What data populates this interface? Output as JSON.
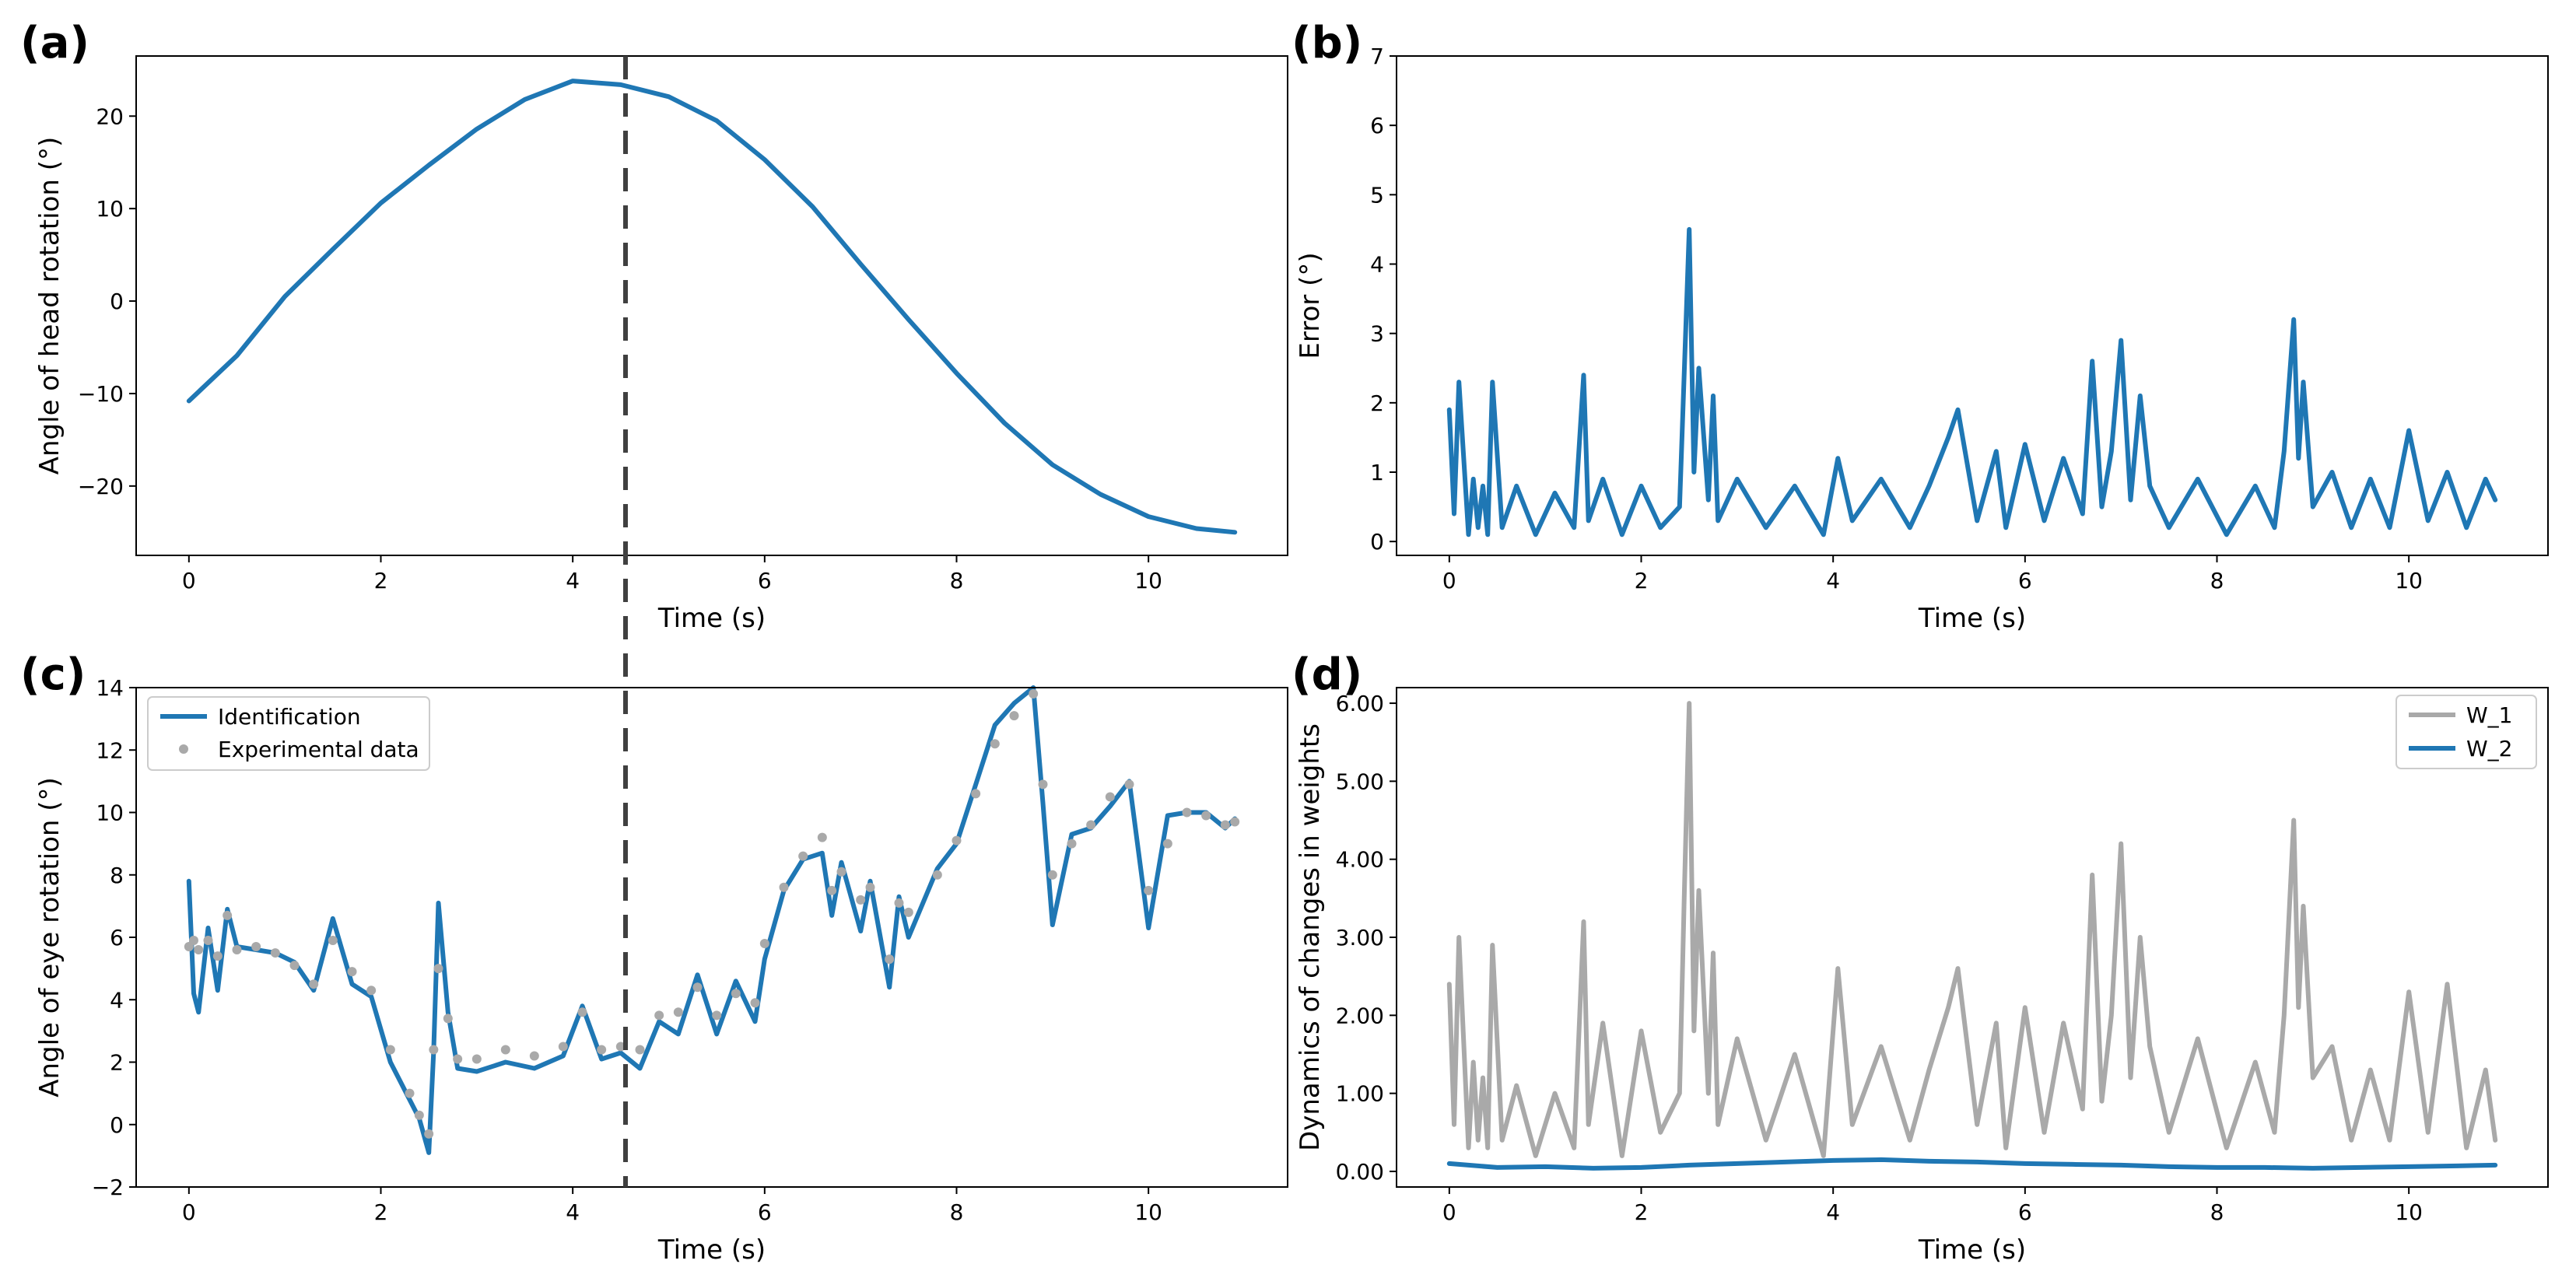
{
  "figure": {
    "divider_color": "#404040",
    "divider_time_s": 4.55
  },
  "chart_data": [
    {
      "panel": "(a)",
      "type": "line",
      "xlabel": "Time (s)",
      "ylabel": "Angle of head rotation (°)",
      "xlim": [
        -0.55,
        11.45
      ],
      "ylim": [
        -27.5,
        26.5
      ],
      "xticks": [
        0,
        2,
        4,
        6,
        8,
        10
      ],
      "xtick_labels": [
        "0",
        "2",
        "4",
        "6",
        "8",
        "10"
      ],
      "yticks": [
        -20,
        -10,
        0,
        10,
        20
      ],
      "ytick_labels": [
        "−20",
        "−10",
        "0",
        "10",
        "20"
      ],
      "series": [
        {
          "name": "Angle of head rotation",
          "color": "#1f77b4",
          "x": [
            0,
            0.5,
            1,
            1.5,
            2,
            2.5,
            3,
            3.5,
            4,
            4.5,
            5,
            5.5,
            6,
            6.5,
            7,
            7.5,
            8,
            8.5,
            9,
            9.5,
            10,
            10.5,
            10.9
          ],
          "y": [
            -10.8,
            -5.9,
            0.5,
            5.6,
            10.6,
            14.7,
            18.6,
            21.8,
            23.8,
            23.4,
            22.1,
            19.5,
            15.3,
            10.2,
            4.0,
            -2.0,
            -7.8,
            -13.2,
            -17.7,
            -20.9,
            -23.3,
            -24.6,
            -25.0
          ]
        }
      ]
    },
    {
      "panel": "(b)",
      "type": "line",
      "xlabel": "Time (s)",
      "ylabel": "Error (°)",
      "xlim": [
        -0.55,
        11.45
      ],
      "ylim": [
        -0.2,
        7
      ],
      "xticks": [
        0,
        2,
        4,
        6,
        8,
        10
      ],
      "xtick_labels": [
        "0",
        "2",
        "4",
        "6",
        "8",
        "10"
      ],
      "yticks": [
        0,
        1,
        2,
        3,
        4,
        5,
        6,
        7
      ],
      "ytick_labels": [
        "0",
        "1",
        "2",
        "3",
        "4",
        "5",
        "6",
        "7"
      ],
      "series": [
        {
          "name": "Error",
          "color": "#1f77b4",
          "x": [
            0,
            0.05,
            0.1,
            0.2,
            0.25,
            0.3,
            0.35,
            0.4,
            0.45,
            0.55,
            0.7,
            0.9,
            1.1,
            1.3,
            1.4,
            1.45,
            1.6,
            1.8,
            2.0,
            2.2,
            2.4,
            2.45,
            2.5,
            2.55,
            2.6,
            2.7,
            2.75,
            2.8,
            3.0,
            3.3,
            3.6,
            3.9,
            4.05,
            4.2,
            4.5,
            4.8,
            5.0,
            5.2,
            5.3,
            5.5,
            5.7,
            5.8,
            6.0,
            6.2,
            6.4,
            6.6,
            6.7,
            6.8,
            6.9,
            7.0,
            7.1,
            7.2,
            7.3,
            7.5,
            7.8,
            8.1,
            8.4,
            8.6,
            8.7,
            8.8,
            8.85,
            8.9,
            9.0,
            9.2,
            9.4,
            9.6,
            9.8,
            10.0,
            10.2,
            10.4,
            10.6,
            10.8,
            10.9
          ],
          "y": [
            1.9,
            0.4,
            2.3,
            0.1,
            0.9,
            0.2,
            0.8,
            0.1,
            2.3,
            0.2,
            0.8,
            0.1,
            0.7,
            0.2,
            2.4,
            0.3,
            0.9,
            0.1,
            0.8,
            0.2,
            0.5,
            2.5,
            4.5,
            1.0,
            2.5,
            0.6,
            2.1,
            0.3,
            0.9,
            0.2,
            0.8,
            0.1,
            1.2,
            0.3,
            0.9,
            0.2,
            0.8,
            1.5,
            1.9,
            0.3,
            1.3,
            0.2,
            1.4,
            0.3,
            1.2,
            0.4,
            2.6,
            0.5,
            1.3,
            2.9,
            0.6,
            2.1,
            0.8,
            0.2,
            0.9,
            0.1,
            0.8,
            0.2,
            1.3,
            3.2,
            1.2,
            2.3,
            0.5,
            1.0,
            0.2,
            0.9,
            0.2,
            1.6,
            0.3,
            1.0,
            0.2,
            0.9,
            0.6
          ]
        }
      ]
    },
    {
      "panel": "(c)",
      "type": "line",
      "xlabel": "Time (s)",
      "ylabel": "Angle of eye rotation (°)",
      "xlim": [
        -0.55,
        11.45
      ],
      "ylim": [
        -2,
        14
      ],
      "xticks": [
        0,
        2,
        4,
        6,
        8,
        10
      ],
      "xtick_labels": [
        "0",
        "2",
        "4",
        "6",
        "8",
        "10"
      ],
      "yticks": [
        -2,
        0,
        2,
        4,
        6,
        8,
        10,
        12,
        14
      ],
      "ytick_labels": [
        "−2",
        "0",
        "2",
        "4",
        "6",
        "8",
        "10",
        "12",
        "14"
      ],
      "legend_position": "top-left",
      "series": [
        {
          "name": "Identification",
          "color": "#1f77b4",
          "x": [
            0,
            0.05,
            0.1,
            0.2,
            0.3,
            0.4,
            0.5,
            0.7,
            0.9,
            1.1,
            1.3,
            1.5,
            1.7,
            1.9,
            2.1,
            2.3,
            2.4,
            2.5,
            2.55,
            2.6,
            2.7,
            2.8,
            3.0,
            3.3,
            3.6,
            3.9,
            4.1,
            4.3,
            4.5,
            4.7,
            4.9,
            5.1,
            5.3,
            5.5,
            5.7,
            5.9,
            6.0,
            6.2,
            6.4,
            6.6,
            6.7,
            6.8,
            7.0,
            7.1,
            7.3,
            7.4,
            7.5,
            7.8,
            8.0,
            8.2,
            8.4,
            8.6,
            8.8,
            8.9,
            9.0,
            9.2,
            9.4,
            9.6,
            9.8,
            10.0,
            10.2,
            10.4,
            10.6,
            10.8,
            10.9
          ],
          "y": [
            7.8,
            4.2,
            3.6,
            6.3,
            4.3,
            6.9,
            5.7,
            5.6,
            5.5,
            5.2,
            4.3,
            6.6,
            4.5,
            4.1,
            2.0,
            0.8,
            0.2,
            -0.9,
            2.3,
            7.1,
            3.6,
            1.8,
            1.7,
            2.0,
            1.8,
            2.2,
            3.8,
            2.1,
            2.3,
            1.8,
            3.3,
            2.9,
            4.8,
            2.9,
            4.6,
            3.3,
            5.3,
            7.5,
            8.5,
            8.7,
            6.7,
            8.4,
            6.2,
            7.8,
            4.4,
            7.3,
            6.0,
            8.2,
            9.0,
            10.9,
            12.8,
            13.5,
            14.0,
            10.3,
            6.4,
            9.3,
            9.5,
            10.2,
            11.0,
            6.3,
            9.9,
            10.0,
            10.0,
            9.5,
            9.8
          ]
        },
        {
          "name": "Experimental data",
          "color": "#a9a9a9",
          "x": [
            0,
            0.05,
            0.1,
            0.2,
            0.3,
            0.4,
            0.5,
            0.7,
            0.9,
            1.1,
            1.3,
            1.5,
            1.7,
            1.9,
            2.1,
            2.3,
            2.4,
            2.5,
            2.55,
            2.6,
            2.7,
            2.8,
            3.0,
            3.3,
            3.6,
            3.9,
            4.1,
            4.3,
            4.5,
            4.7,
            4.9,
            5.1,
            5.3,
            5.5,
            5.7,
            5.9,
            6.0,
            6.2,
            6.4,
            6.6,
            6.7,
            6.8,
            7.0,
            7.1,
            7.3,
            7.4,
            7.5,
            7.8,
            8.0,
            8.2,
            8.4,
            8.6,
            8.8,
            8.9,
            9.0,
            9.2,
            9.4,
            9.6,
            9.8,
            10.0,
            10.2,
            10.4,
            10.6,
            10.8,
            10.9
          ],
          "y": [
            5.7,
            5.9,
            5.6,
            5.9,
            5.4,
            6.7,
            5.6,
            5.7,
            5.5,
            5.1,
            4.5,
            5.9,
            4.9,
            4.3,
            2.4,
            1.0,
            0.3,
            -0.3,
            2.4,
            5.0,
            3.4,
            2.1,
            2.1,
            2.4,
            2.2,
            2.5,
            3.6,
            2.4,
            2.5,
            2.4,
            3.5,
            3.6,
            4.4,
            3.5,
            4.2,
            3.9,
            5.8,
            7.6,
            8.6,
            9.2,
            7.5,
            8.1,
            7.2,
            7.6,
            5.3,
            7.1,
            6.8,
            8.0,
            9.1,
            10.6,
            12.2,
            13.1,
            13.8,
            10.9,
            8.0,
            9.0,
            9.6,
            10.5,
            10.9,
            7.5,
            9.0,
            10.0,
            9.9,
            9.6,
            9.7
          ]
        }
      ]
    },
    {
      "panel": "(d)",
      "type": "line",
      "xlabel": "Time (s)",
      "ylabel": "Dynamics of changes in weights",
      "xlim": [
        -0.55,
        11.45
      ],
      "ylim": [
        -0.2,
        6.2
      ],
      "xticks": [
        0,
        2,
        4,
        6,
        8,
        10
      ],
      "xtick_labels": [
        "0",
        "2",
        "4",
        "6",
        "8",
        "10"
      ],
      "yticks": [
        0,
        1,
        2,
        3,
        4,
        5,
        6
      ],
      "ytick_labels": [
        "0.00",
        "1.00",
        "2.00",
        "3.00",
        "4.00",
        "5.00",
        "6.00"
      ],
      "legend_position": "top-right",
      "series": [
        {
          "name": "W_1",
          "color": "#a9a9a9",
          "x": [
            0,
            0.05,
            0.1,
            0.2,
            0.25,
            0.3,
            0.35,
            0.4,
            0.45,
            0.55,
            0.7,
            0.9,
            1.1,
            1.3,
            1.4,
            1.45,
            1.6,
            1.8,
            2.0,
            2.2,
            2.4,
            2.45,
            2.5,
            2.55,
            2.6,
            2.7,
            2.75,
            2.8,
            3.0,
            3.3,
            3.6,
            3.9,
            4.05,
            4.2,
            4.5,
            4.8,
            5.0,
            5.2,
            5.3,
            5.5,
            5.7,
            5.8,
            6.0,
            6.2,
            6.4,
            6.6,
            6.7,
            6.8,
            6.9,
            7.0,
            7.1,
            7.2,
            7.3,
            7.5,
            7.8,
            8.1,
            8.4,
            8.6,
            8.7,
            8.8,
            8.85,
            8.9,
            9.0,
            9.2,
            9.4,
            9.6,
            9.8,
            10.0,
            10.2,
            10.4,
            10.6,
            10.8,
            10.9
          ],
          "y": [
            2.4,
            0.6,
            3.0,
            0.3,
            1.4,
            0.4,
            1.2,
            0.3,
            2.9,
            0.4,
            1.1,
            0.2,
            1.0,
            0.3,
            3.2,
            0.6,
            1.9,
            0.2,
            1.8,
            0.5,
            1.0,
            3.6,
            6.0,
            1.8,
            3.6,
            1.0,
            2.8,
            0.6,
            1.7,
            0.4,
            1.5,
            0.2,
            2.6,
            0.6,
            1.6,
            0.4,
            1.3,
            2.1,
            2.6,
            0.6,
            1.9,
            0.3,
            2.1,
            0.5,
            1.9,
            0.8,
            3.8,
            0.9,
            2.0,
            4.2,
            1.2,
            3.0,
            1.6,
            0.5,
            1.7,
            0.3,
            1.4,
            0.5,
            2.0,
            4.5,
            2.1,
            3.4,
            1.2,
            1.6,
            0.4,
            1.3,
            0.4,
            2.3,
            0.5,
            2.4,
            0.3,
            1.3,
            0.4
          ]
        },
        {
          "name": "W_2",
          "color": "#1f77b4",
          "x": [
            0,
            0.5,
            1,
            1.5,
            2,
            2.5,
            3,
            3.5,
            4,
            4.5,
            5,
            5.5,
            6,
            6.5,
            7,
            7.5,
            8,
            8.5,
            9,
            9.5,
            10,
            10.5,
            10.9
          ],
          "y": [
            0.1,
            0.05,
            0.06,
            0.04,
            0.05,
            0.08,
            0.1,
            0.12,
            0.14,
            0.15,
            0.13,
            0.12,
            0.1,
            0.09,
            0.08,
            0.06,
            0.05,
            0.05,
            0.04,
            0.05,
            0.06,
            0.07,
            0.08
          ]
        }
      ]
    }
  ]
}
